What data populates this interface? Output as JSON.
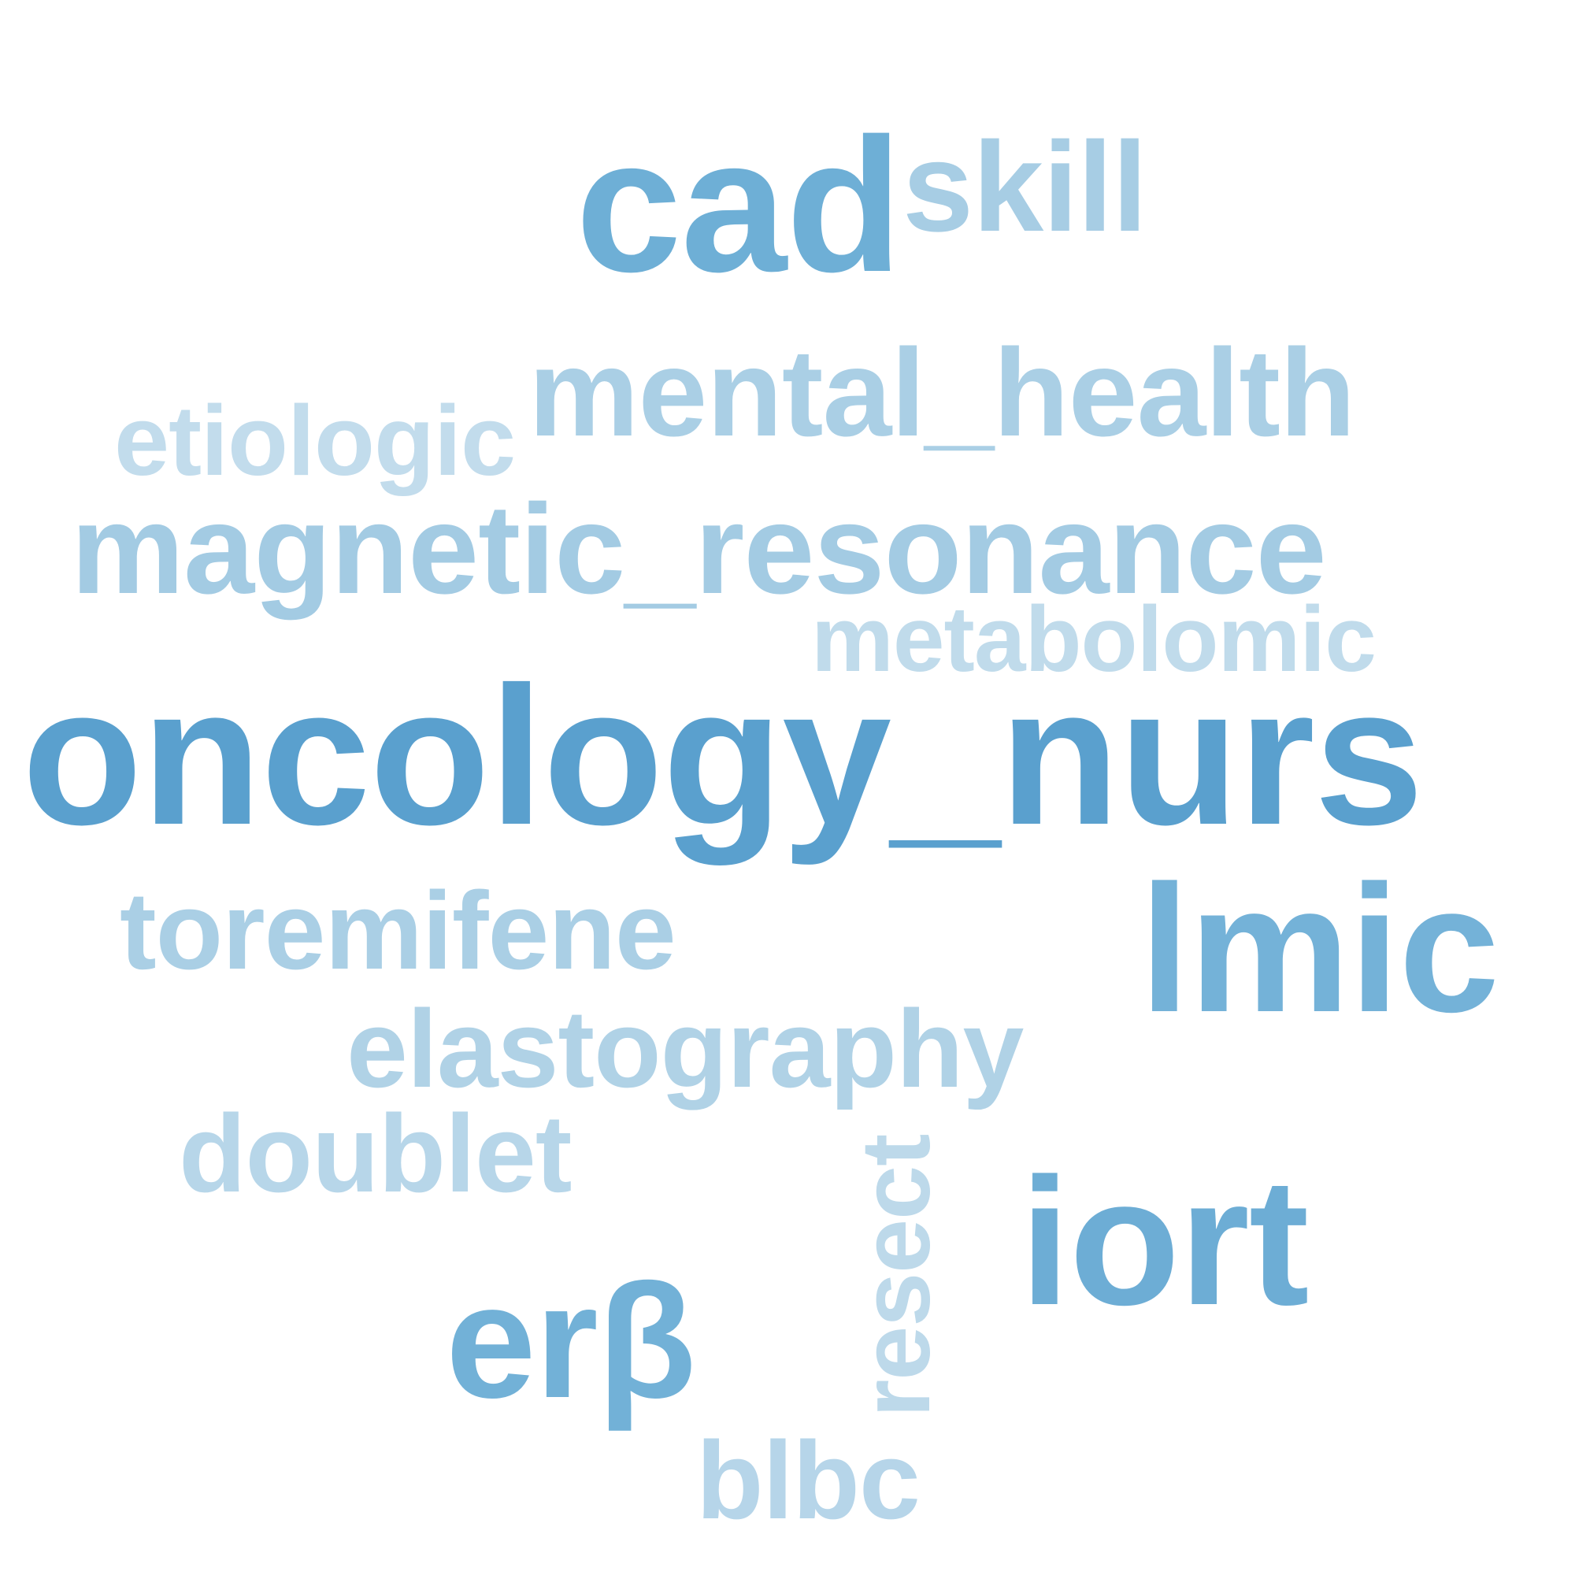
{
  "words": [
    {
      "key": "oncology",
      "text": "oncology_nurs",
      "color": "#5aa0ce"
    },
    {
      "key": "cad",
      "text": "cad",
      "color": "#6eafd6"
    },
    {
      "key": "lmic",
      "text": "lmic",
      "color": "#74b2d8"
    },
    {
      "key": "iort",
      "text": "iort",
      "color": "#6dadd5"
    },
    {
      "key": "erb",
      "text": "erβ",
      "color": "#72b1d7"
    },
    {
      "key": "skill",
      "text": "skill",
      "color": "#a7cde4"
    },
    {
      "key": "mental",
      "text": "mental_health",
      "color": "#aacfe5"
    },
    {
      "key": "magnetic",
      "text": "magnetic_resonance",
      "color": "#a3cbe3"
    },
    {
      "key": "toremifene",
      "text": "toremifene",
      "color": "#aacfe5"
    },
    {
      "key": "elastography",
      "text": "elastography",
      "color": "#b0d2e6"
    },
    {
      "key": "doublet",
      "text": "doublet",
      "color": "#b7d6e9"
    },
    {
      "key": "blbc",
      "text": "blbc",
      "color": "#b6d5e9"
    },
    {
      "key": "etiologic",
      "text": "etiologic",
      "color": "#c2dcec"
    },
    {
      "key": "metabolomic",
      "text": "metabolomic",
      "color": "#c0dbeb"
    },
    {
      "key": "resect",
      "text": "resect",
      "color": "#bdd9ea"
    }
  ]
}
